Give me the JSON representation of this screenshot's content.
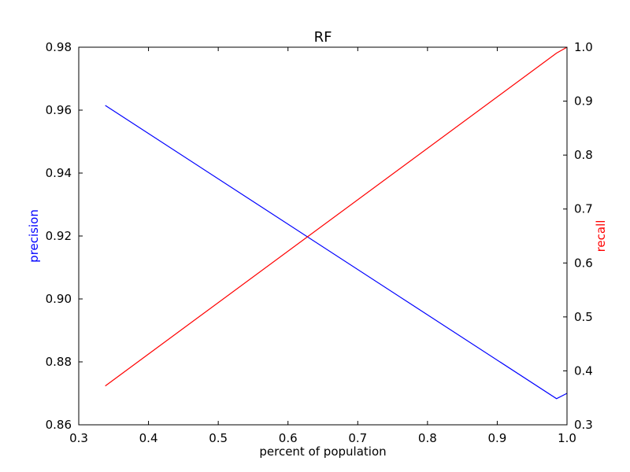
{
  "chart_data": {
    "type": "line",
    "title": "RF",
    "xlabel": "percent of population",
    "xlim": [
      0.3,
      1.0
    ],
    "xticks": [
      "0.3",
      "0.4",
      "0.5",
      "0.6",
      "0.7",
      "0.8",
      "0.9",
      "1.0"
    ],
    "grid": false,
    "axes": {
      "left": {
        "label": "precision",
        "color": "#0000ff",
        "ylim": [
          0.86,
          0.98
        ],
        "ticks": [
          "0.86",
          "0.88",
          "0.90",
          "0.92",
          "0.94",
          "0.96",
          "0.98"
        ]
      },
      "right": {
        "label": "recall",
        "color": "#ff0000",
        "ylim": [
          0.3,
          1.0
        ],
        "ticks": [
          "0.3",
          "0.4",
          "0.5",
          "0.6",
          "0.7",
          "0.8",
          "0.9",
          "1.0"
        ]
      }
    },
    "series": [
      {
        "axis": "left",
        "color": "#0000ff",
        "x": [
          0.338,
          0.985,
          1.0
        ],
        "y": [
          0.9615,
          0.8683,
          0.87
        ]
      },
      {
        "axis": "right",
        "color": "#ff0000",
        "x": [
          0.338,
          0.985,
          1.0
        ],
        "y": [
          0.372,
          0.989,
          1.0
        ]
      }
    ]
  }
}
